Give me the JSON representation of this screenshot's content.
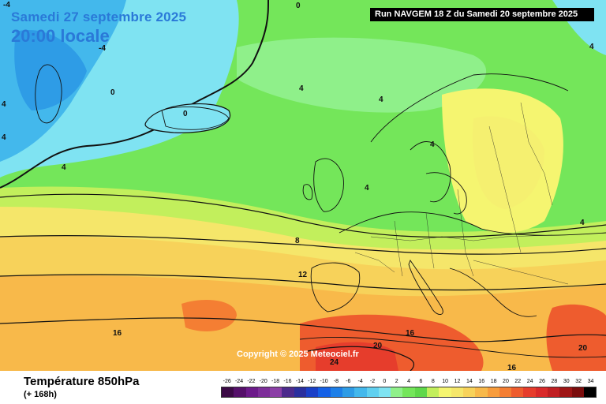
{
  "header": {
    "date": "Samedi 27 septembre 2025",
    "local_time": "20:00 locale",
    "run": "Run NAVGEM 18 Z du Samedi 20 septembre 2025"
  },
  "copyright": "Copyright © 2025 Meteociel.fr",
  "footer": {
    "variable": "Température 850hPa",
    "lead_time": "(+ 168h)"
  },
  "scale": {
    "ticks": [
      "-26",
      "-24",
      "-22",
      "-20",
      "-18",
      "-16",
      "-14",
      "-12",
      "-10",
      "-8",
      "-6",
      "-4",
      "-2",
      "0",
      "2",
      "4",
      "6",
      "8",
      "10",
      "12",
      "14",
      "16",
      "18",
      "20",
      "22",
      "24",
      "26",
      "28",
      "30",
      "32",
      "34"
    ],
    "colors": [
      "#3b0a45",
      "#55106a",
      "#6c1a8a",
      "#7d2e99",
      "#8b3fa6",
      "#4c2a8c",
      "#2a2f9e",
      "#1a40c8",
      "#1460e6",
      "#1d7fe8",
      "#2e9ce6",
      "#43b8ec",
      "#60d0f0",
      "#7fe3f2",
      "#8ff08a",
      "#74e65a",
      "#5fd84a",
      "#c2ef5c",
      "#f5f570",
      "#f5e66a",
      "#f7d25a",
      "#f8b94a",
      "#f79c3c",
      "#f47e33",
      "#ee5c2e",
      "#e63d2c",
      "#d92a2a",
      "#c01f22",
      "#9e1515",
      "#7a0d0d",
      "#000000"
    ]
  },
  "isotherm_labels": [
    {
      "id": "lbl-m4-tl",
      "text": "-4"
    },
    {
      "id": "lbl-0-top",
      "text": "0"
    },
    {
      "id": "lbl-m4-gl",
      "text": "-4"
    },
    {
      "id": "lbl-0-gl",
      "text": "0"
    },
    {
      "id": "lbl-0-ic",
      "text": "0"
    },
    {
      "id": "lbl-4-l1",
      "text": "4"
    },
    {
      "id": "lbl-4-l2",
      "text": "4"
    },
    {
      "id": "lbl-4-ca",
      "text": "4"
    },
    {
      "id": "lbl-4-atl",
      "text": "4"
    },
    {
      "id": "lbl-4-nw",
      "text": "4"
    },
    {
      "id": "lbl-4-sc",
      "text": "4"
    },
    {
      "id": "lbl-4-no",
      "text": "4"
    },
    {
      "id": "lbl-4-uk",
      "text": "4"
    },
    {
      "id": "lbl-4-ru",
      "text": "4"
    },
    {
      "id": "lbl-8",
      "text": "8"
    },
    {
      "id": "lbl-12",
      "text": "12"
    },
    {
      "id": "lbl-16-w",
      "text": "16"
    },
    {
      "id": "lbl-16-c",
      "text": "16"
    },
    {
      "id": "lbl-16-s",
      "text": "16"
    },
    {
      "id": "lbl-20-c",
      "text": "20"
    },
    {
      "id": "lbl-20-e",
      "text": "20"
    },
    {
      "id": "lbl-24",
      "text": "24"
    }
  ]
}
